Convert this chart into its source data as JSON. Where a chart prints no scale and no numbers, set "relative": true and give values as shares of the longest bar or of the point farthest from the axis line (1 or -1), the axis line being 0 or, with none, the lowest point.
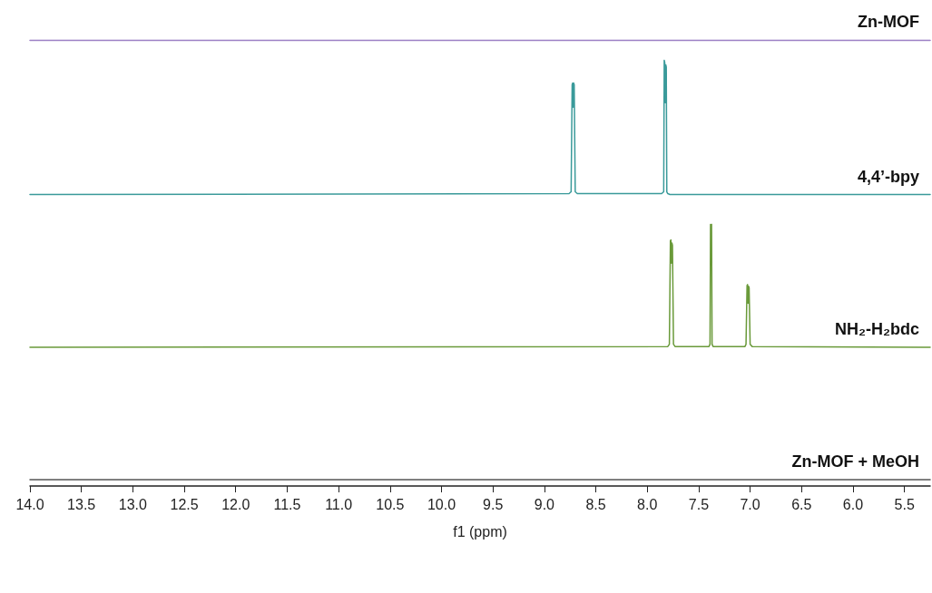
{
  "chart_data": {
    "type": "line",
    "relative": true,
    "xlabel": "f1 (ppm)",
    "xlim": [
      14.0,
      5.25
    ],
    "xticks": [
      {
        "value": 14,
        "label": "14.0"
      },
      {
        "value": 13.5,
        "label": "13.5"
      },
      {
        "value": 13,
        "label": "13.0"
      },
      {
        "value": 12.5,
        "label": "12.5"
      },
      {
        "value": 12,
        "label": "12.0"
      },
      {
        "value": 11.5,
        "label": "11.5"
      },
      {
        "value": 11,
        "label": "11.0"
      },
      {
        "value": 10.5,
        "label": "10.5"
      },
      {
        "value": 10,
        "label": "10.0"
      },
      {
        "value": 9.5,
        "label": "9.5"
      },
      {
        "value": 9,
        "label": "9.0"
      },
      {
        "value": 8.5,
        "label": "8.5"
      },
      {
        "value": 8,
        "label": "8.0"
      },
      {
        "value": 7.5,
        "label": "7.5"
      },
      {
        "value": 7,
        "label": "7.0"
      },
      {
        "value": 6.5,
        "label": "6.5"
      },
      {
        "value": 6,
        "label": "6.0"
      },
      {
        "value": 5.5,
        "label": "5.5"
      }
    ],
    "tick_labels": "x",
    "grid": false,
    "legend": false,
    "marker": "none",
    "line_style": "solid",
    "series": [
      {
        "name": "Zn-MOF",
        "color": "#9b7fc4",
        "x": [
          14.0,
          5.25
        ],
        "values": [
          1.0,
          1.0
        ]
      },
      {
        "name": "4,4’-bpy",
        "color": "#3a9a9a",
        "x": [
          14.0,
          8.76,
          8.74,
          8.73,
          8.725,
          8.72,
          8.715,
          8.71,
          8.7,
          8.68,
          7.86,
          7.84,
          7.835,
          7.83,
          7.825,
          7.82,
          7.815,
          7.81,
          7.8,
          7.78,
          5.25
        ],
        "values": [
          0.654,
          0.656,
          0.66,
          0.9,
          0.904,
          0.85,
          0.904,
          0.9,
          0.66,
          0.656,
          0.656,
          0.66,
          0.955,
          0.95,
          0.86,
          0.945,
          0.94,
          0.66,
          0.656,
          0.654,
          0.654
        ]
      },
      {
        "name": "NH₂-H₂bdc",
        "color": "#6a9a3a",
        "x": [
          14.0,
          7.8,
          7.785,
          7.775,
          7.77,
          7.765,
          7.76,
          7.755,
          7.745,
          7.73,
          7.4,
          7.39,
          7.385,
          7.38,
          7.375,
          7.37,
          7.36,
          7.05,
          7.04,
          7.03,
          7.025,
          7.02,
          7.015,
          7.01,
          7.0,
          6.98,
          5.25
        ],
        "values": [
          0.311,
          0.313,
          0.318,
          0.55,
          0.552,
          0.5,
          0.545,
          0.54,
          0.318,
          0.313,
          0.313,
          0.318,
          0.587,
          0.585,
          0.587,
          0.318,
          0.313,
          0.313,
          0.318,
          0.45,
          0.452,
          0.41,
          0.448,
          0.445,
          0.318,
          0.313,
          0.311
        ]
      },
      {
        "name": "Zn-MOF + MeOH",
        "color": "#555555",
        "x": [
          14.0,
          5.25
        ],
        "values": [
          0.014,
          0.014
        ]
      }
    ]
  }
}
